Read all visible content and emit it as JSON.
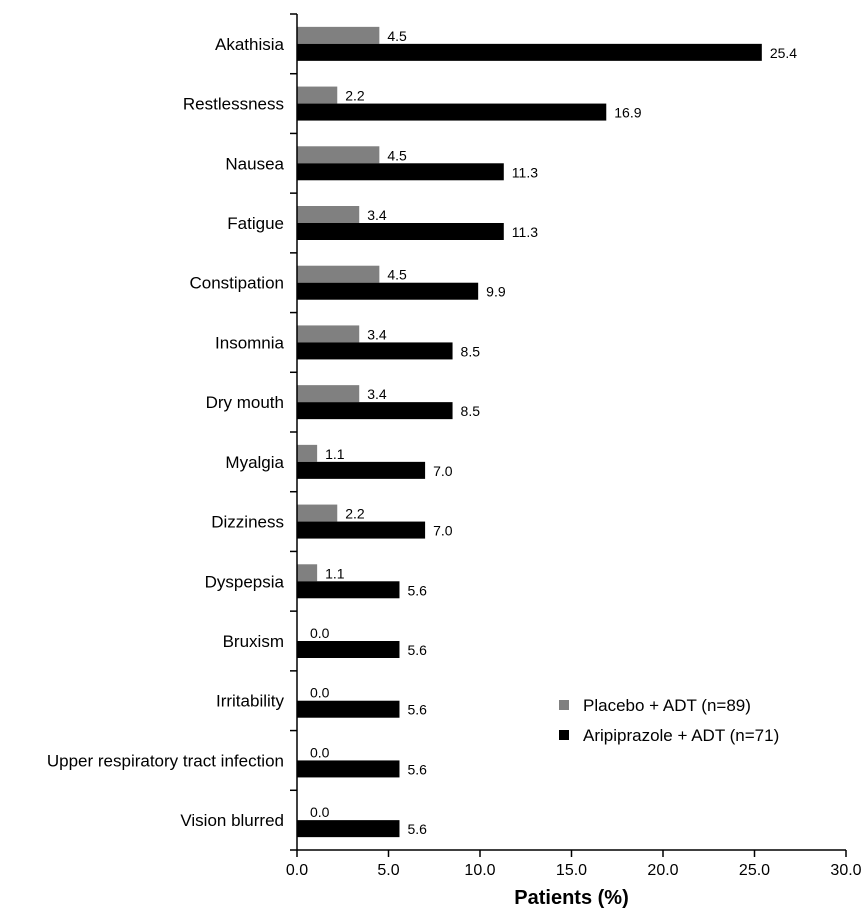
{
  "chart_data": {
    "type": "bar",
    "orientation": "horizontal",
    "categories": [
      "Akathisia",
      "Restlessness",
      "Nausea",
      "Fatigue",
      "Constipation",
      "Insomnia",
      "Dry mouth",
      "Myalgia",
      "Dizziness",
      "Dyspepsia",
      "Bruxism",
      "Irritability",
      "Upper respiratory tract infection",
      "Vision blurred"
    ],
    "series": [
      {
        "name": "Placebo + ADT (n=89)",
        "color": "#808080",
        "values": [
          4.5,
          2.2,
          4.5,
          3.4,
          4.5,
          3.4,
          3.4,
          1.1,
          2.2,
          1.1,
          0.0,
          0.0,
          0.0,
          0.0
        ],
        "labels": [
          "4.5",
          "2.2",
          "4.5",
          "3.4",
          "4.5",
          "3.4",
          "3.4",
          "1.1",
          "2.2",
          "1.1",
          "0.0",
          "0.0",
          "0.0",
          "0.0"
        ]
      },
      {
        "name": "Aripiprazole + ADT (n=71)",
        "color": "#000000",
        "values": [
          25.4,
          16.9,
          11.3,
          11.3,
          9.9,
          8.5,
          8.5,
          7.0,
          7.0,
          5.6,
          5.6,
          5.6,
          5.6,
          5.6
        ],
        "labels": [
          "25.4",
          "16.9",
          "11.3",
          "11.3",
          "9.9",
          "8.5",
          "8.5",
          "7.0",
          "7.0",
          "5.6",
          "5.6",
          "5.6",
          "5.6",
          "5.6"
        ]
      }
    ],
    "xlabel": "Patients (%)",
    "xlim": [
      0,
      30
    ],
    "xticks": [
      "0.0",
      "5.0",
      "10.0",
      "15.0",
      "20.0",
      "25.0",
      "30.0"
    ],
    "grid": false,
    "legend_position": "bottom-right"
  }
}
